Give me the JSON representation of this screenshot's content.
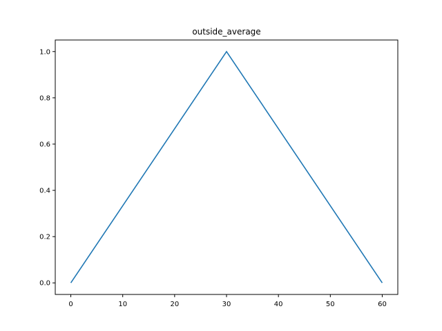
{
  "chart_data": {
    "type": "line",
    "title": "outside_average",
    "xlabel": "",
    "ylabel": "",
    "xlim": [
      -3,
      63
    ],
    "ylim": [
      -0.05,
      1.05
    ],
    "x_ticks": [
      0,
      10,
      20,
      30,
      40,
      50,
      60
    ],
    "x_tick_labels": [
      "0",
      "10",
      "20",
      "30",
      "40",
      "50",
      "60"
    ],
    "y_ticks": [
      0.0,
      0.2,
      0.4,
      0.6,
      0.8,
      1.0
    ],
    "y_tick_labels": [
      "0.0",
      "0.2",
      "0.4",
      "0.6",
      "0.8",
      "1.0"
    ],
    "grid": false,
    "series": [
      {
        "color": "#1f77b4",
        "x": [
          0,
          30,
          60
        ],
        "y": [
          0.0,
          1.0,
          0.0
        ]
      }
    ]
  }
}
